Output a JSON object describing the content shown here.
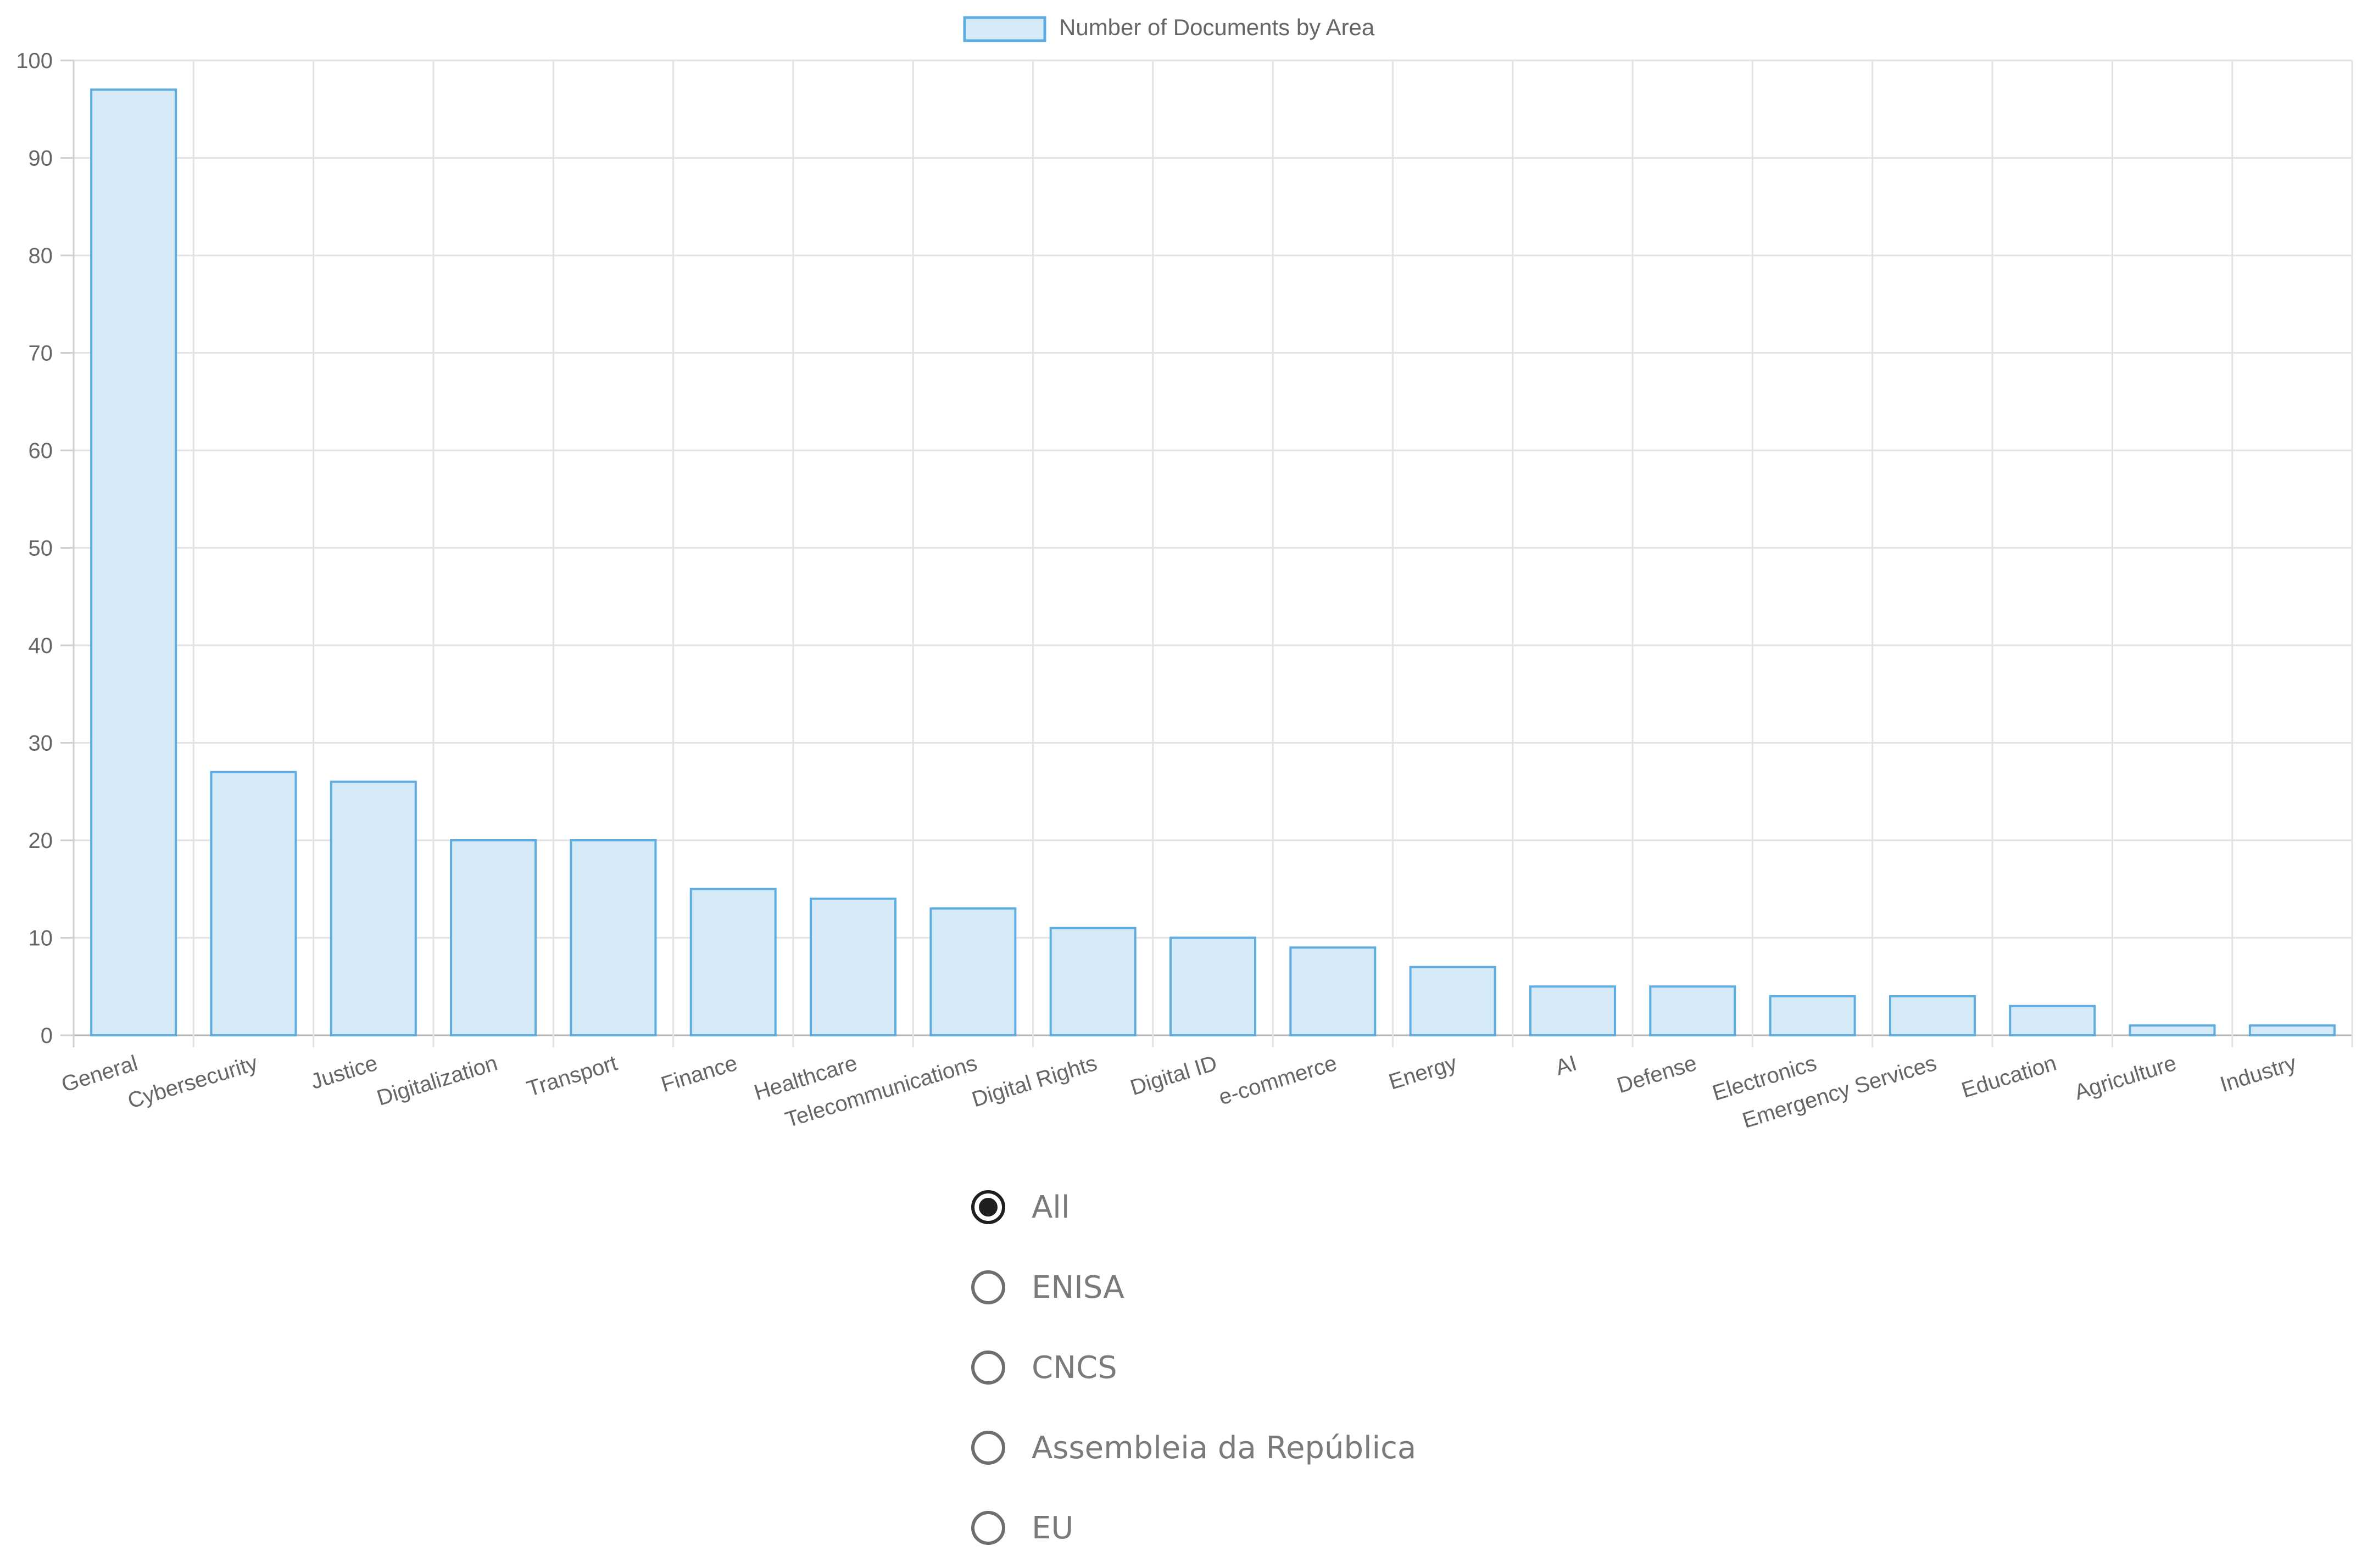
{
  "chart_data": {
    "type": "bar",
    "title": "",
    "xlabel": "",
    "ylabel": "",
    "ylim": [
      0,
      100
    ],
    "yticks": [
      0,
      10,
      20,
      30,
      40,
      50,
      60,
      70,
      80,
      90,
      100
    ],
    "grid": true,
    "legend_position": "top-center",
    "categories": [
      "General",
      "Cybersecurity",
      "Justice",
      "Digitalization",
      "Transport",
      "Finance",
      "Healthcare",
      "Telecommunications",
      "Digital Rights",
      "Digital ID",
      "e-commerce",
      "Energy",
      "AI",
      "Defense",
      "Electronics",
      "Emergency Services",
      "Education",
      "Agriculture",
      "Industry"
    ],
    "series": [
      {
        "name": "Number of Documents by Area",
        "values": [
          97,
          27,
          26,
          20,
          20,
          15,
          14,
          13,
          11,
          10,
          9,
          7,
          5,
          5,
          4,
          4,
          3,
          1,
          1
        ],
        "fill_color": "#d6eaf8",
        "border_color": "#5dade2"
      }
    ]
  },
  "filter": {
    "selected": "All",
    "options": [
      {
        "label": "All",
        "checked": true
      },
      {
        "label": "ENISA",
        "checked": false
      },
      {
        "label": "CNCS",
        "checked": false
      },
      {
        "label": "Assembleia da República",
        "checked": false
      },
      {
        "label": "EU",
        "checked": false
      }
    ]
  }
}
